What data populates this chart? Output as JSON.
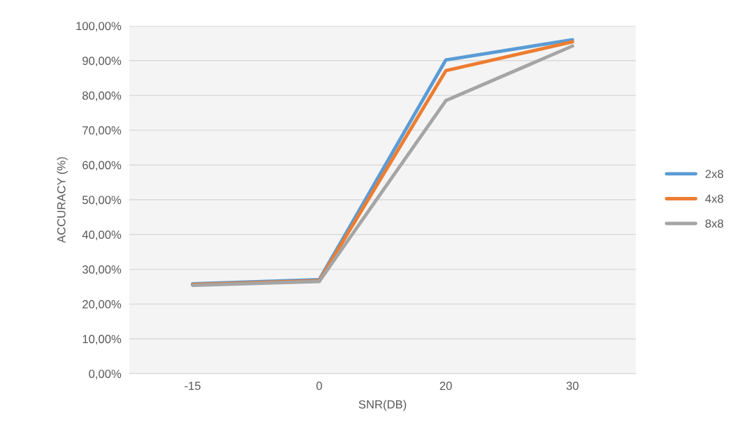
{
  "chart_data": {
    "type": "line",
    "xlabel": "SNR(DB)",
    "ylabel": "ACCURACY (%)",
    "categories": [
      "-15",
      "0",
      "20",
      "30"
    ],
    "series": [
      {
        "name": "2x8",
        "color": "#5b9bd5",
        "values": [
          25.8,
          27.0,
          90.2,
          96.0
        ]
      },
      {
        "name": "4x8",
        "color": "#ed7d31",
        "values": [
          25.6,
          26.7,
          87.1,
          95.4
        ]
      },
      {
        "name": "8x8",
        "color": "#a5a5a5",
        "values": [
          25.4,
          26.5,
          78.5,
          94.2
        ]
      }
    ],
    "ylim": [
      0,
      100
    ],
    "yticks": [
      {
        "value": 0,
        "label": "0,00%"
      },
      {
        "value": 10,
        "label": "10,00%"
      },
      {
        "value": 20,
        "label": "20,00%"
      },
      {
        "value": 30,
        "label": "30,00%"
      },
      {
        "value": 40,
        "label": "40,00%"
      },
      {
        "value": 50,
        "label": "50,00%"
      },
      {
        "value": 60,
        "label": "60,00%"
      },
      {
        "value": 70,
        "label": "70,00%"
      },
      {
        "value": 80,
        "label": "80,00%"
      },
      {
        "value": 90,
        "label": "90,00%"
      },
      {
        "value": 100,
        "label": "100,00%"
      }
    ],
    "grid": "y",
    "legend": "right",
    "marker": "none",
    "line_style": "solid"
  }
}
